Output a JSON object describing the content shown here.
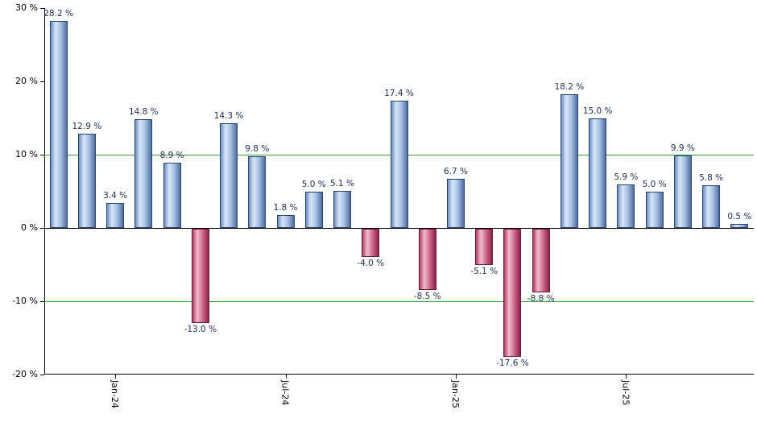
{
  "chart": {
    "background_color": "#ffffff",
    "axis_color": "#000000",
    "gridline_color": "#35a135",
    "value_label_color": "#1f2d52",
    "positive_bar": {
      "gradient_stops": [
        "#6b8ec2",
        "#d9e6f8",
        "#a6c0e4",
        "#4f6d9d"
      ],
      "border_color": "#24456f"
    },
    "negative_bar": {
      "gradient_stops": [
        "#b23a63",
        "#f1bdcf",
        "#d06a8e",
        "#8c2148"
      ],
      "border_color": "#6e1b39"
    }
  },
  "chart_data": {
    "type": "bar",
    "title": "",
    "xlabel": "",
    "ylabel": "",
    "values": [
      28.2,
      12.9,
      3.4,
      14.8,
      8.9,
      -13.0,
      14.3,
      9.8,
      1.8,
      5.0,
      5.1,
      -4.0,
      17.4,
      -8.5,
      6.7,
      -5.1,
      -17.6,
      -8.8,
      18.2,
      15.0,
      5.9,
      5.0,
      9.9,
      5.8,
      0.5
    ],
    "value_label_suffix": " %",
    "value_label_decimals": 1,
    "ylim": [
      -20,
      30
    ],
    "y_ticks": [
      {
        "value": 30,
        "label": "30 %"
      },
      {
        "value": 20,
        "label": "20 %"
      },
      {
        "value": 10,
        "label": "10 %"
      },
      {
        "value": 0,
        "label": "0 %"
      },
      {
        "value": -10,
        "label": "-10 %"
      },
      {
        "value": -20,
        "label": "-20 %"
      }
    ],
    "x_ticks": [
      {
        "bar_index": 2,
        "label": "Jan-24"
      },
      {
        "bar_index": 8,
        "label": "Jul-24"
      },
      {
        "bar_index": 14,
        "label": "Jan-25"
      },
      {
        "bar_index": 20,
        "label": "Jul-25"
      }
    ],
    "gridlines": [
      10,
      -10
    ],
    "zero_line": 0,
    "legend": "none",
    "grid": "horizontal-partial"
  }
}
